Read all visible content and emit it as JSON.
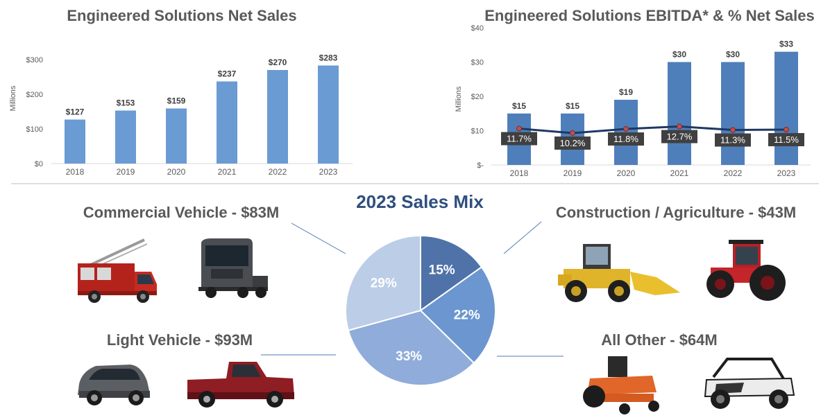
{
  "chart_data": [
    {
      "type": "bar",
      "title": "Engineered Solutions Net Sales",
      "ylabel": "Millions",
      "xlabel": "",
      "categories": [
        "2018",
        "2019",
        "2020",
        "2021",
        "2022",
        "2023"
      ],
      "values": [
        127,
        153,
        159,
        237,
        270,
        283
      ],
      "value_labels": [
        "$127",
        "$153",
        "$159",
        "$237",
        "$270",
        "$283"
      ],
      "ylim": [
        0,
        300
      ],
      "yticks": [
        0,
        100,
        200,
        300
      ],
      "ytick_labels": [
        "$0",
        "$100",
        "$200",
        "$300"
      ],
      "grid": false,
      "bar_color": "#6a9bd3"
    },
    {
      "type": "bar",
      "title": "Engineered Solutions EBITDA* & % Net Sales",
      "ylabel": "Millions",
      "xlabel": "",
      "categories": [
        "2018",
        "2019",
        "2020",
        "2021",
        "2022",
        "2023"
      ],
      "values": [
        15,
        15,
        19,
        30,
        30,
        33
      ],
      "value_labels": [
        "$15",
        "$15",
        "$19",
        "$30",
        "$30",
        "$33"
      ],
      "ylim": [
        0,
        40
      ],
      "yticks": [
        0,
        10,
        20,
        30,
        40
      ],
      "ytick_labels": [
        "$-",
        "$10",
        "$20",
        "$30",
        "$40"
      ],
      "grid": false,
      "bar_color": "#4f7fba",
      "line_series": {
        "percent_values": [
          11.7,
          10.2,
          11.8,
          12.7,
          11.3,
          11.5
        ],
        "labels": [
          "11.7%",
          "10.2%",
          "11.8%",
          "12.7%",
          "11.3%",
          "11.5%"
        ],
        "plot_values": [
          10.6,
          9.3,
          10.5,
          11.2,
          10.2,
          10.3
        ],
        "line_color": "#1f3864",
        "marker_color": "#c0504d"
      }
    },
    {
      "type": "pie",
      "title": "2023 Sales Mix",
      "slices": [
        {
          "label": "15%",
          "value": 15,
          "color": "#4f73a8"
        },
        {
          "label": "22%",
          "value": 22,
          "color": "#6b96cf"
        },
        {
          "label": "33%",
          "value": 33,
          "color": "#8facdb"
        },
        {
          "label": "29%",
          "value": 29,
          "color": "#bccde7"
        }
      ]
    }
  ],
  "segments": {
    "commercial": "Commercial Vehicle - $83M",
    "construction": "Construction / Agriculture - $43M",
    "light": "Light Vehicle - $93M",
    "other": "All Other - $64M"
  },
  "colors": {
    "title_gray": "#595959",
    "pie_title": "#2f4f7f",
    "axis_text": "#595959",
    "connector": "#6f93c6"
  },
  "icons": [
    "fire-truck-icon",
    "semi-truck-icon",
    "wheel-loader-icon",
    "tractor-icon",
    "suv-icon",
    "pickup-truck-icon",
    "zero-turn-mower-icon",
    "utv-icon"
  ]
}
